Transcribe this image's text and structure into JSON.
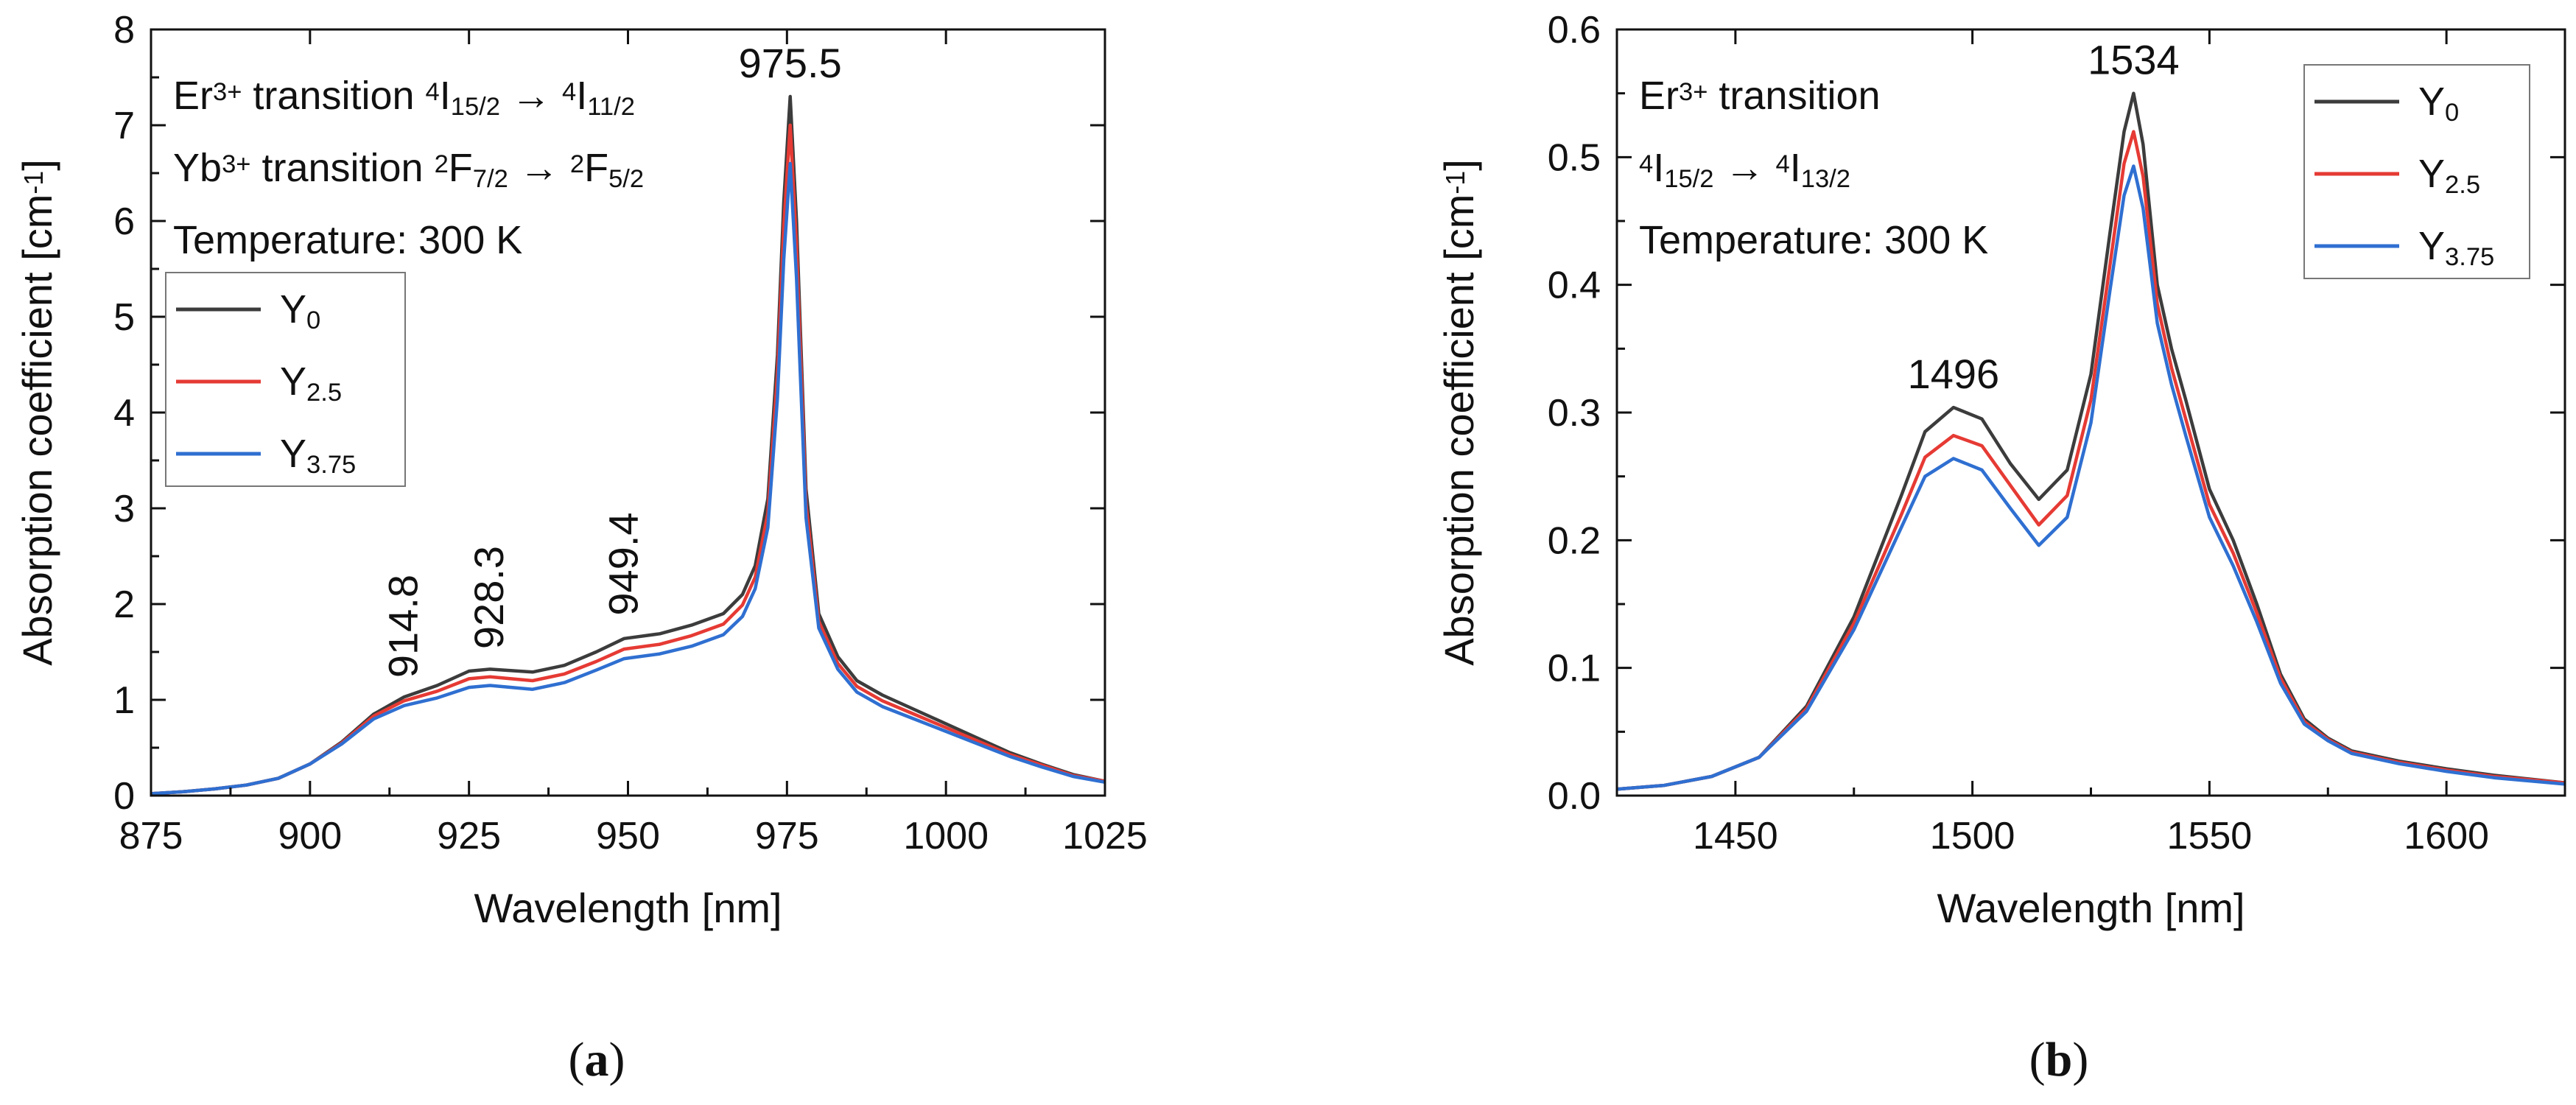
{
  "chart_data": [
    {
      "id": "a",
      "type": "line",
      "xlabel": "Wavelength [nm]",
      "ylabel_parts": [
        "Absorption coefficient [cm",
        "-1",
        "]"
      ],
      "xlim": [
        875,
        1025
      ],
      "ylim": [
        0,
        8
      ],
      "xticks": [
        875,
        900,
        925,
        950,
        975,
        1000,
        1025
      ],
      "yticks": [
        0,
        1,
        2,
        3,
        4,
        5,
        6,
        7,
        8
      ],
      "grid": false,
      "legend_position": "left",
      "info_lines": [
        [
          {
            "t": "Er"
          },
          {
            "t": "3+",
            "s": "sup"
          },
          {
            "t": " transition "
          },
          {
            "t": "4",
            "s": "sup"
          },
          {
            "t": "I"
          },
          {
            "t": "15/2",
            "s": "sub"
          },
          {
            "t": " → "
          },
          {
            "t": "4",
            "s": "sup"
          },
          {
            "t": "I"
          },
          {
            "t": "11/2",
            "s": "sub"
          }
        ],
        [
          {
            "t": "Yb"
          },
          {
            "t": "3+",
            "s": "sup"
          },
          {
            "t": " transition "
          },
          {
            "t": "2",
            "s": "sup"
          },
          {
            "t": "F"
          },
          {
            "t": "7/2",
            "s": "sub"
          },
          {
            "t": " → "
          },
          {
            "t": "2",
            "s": "sup"
          },
          {
            "t": "F"
          },
          {
            "t": "5/2",
            "s": "sub"
          }
        ],
        [
          {
            "t": "Temperature: 300 K"
          }
        ]
      ],
      "peak_labels": [
        {
          "text": "914.8",
          "x": 914.8,
          "y": 1.03,
          "rotate": true
        },
        {
          "text": "928.3",
          "x": 928.3,
          "y": 1.33,
          "rotate": true
        },
        {
          "text": "949.4",
          "x": 949.4,
          "y": 1.68,
          "rotate": true
        },
        {
          "text": "975.5",
          "x": 975.5,
          "y": 7.3,
          "rotate": false
        }
      ],
      "series": [
        {
          "name": "Y",
          "sub": "0",
          "color": "#3c3c3c",
          "x": [
            875,
            880,
            885,
            890,
            895,
            900,
            905,
            910,
            914.8,
            920,
            925,
            928.3,
            935,
            940,
            945,
            949.4,
            955,
            960,
            965,
            968,
            970,
            972,
            973.5,
            974.5,
            975.5,
            976.5,
            978,
            980,
            983,
            986,
            990,
            995,
            1000,
            1005,
            1010,
            1015,
            1020,
            1025
          ],
          "y": [
            0.02,
            0.04,
            0.07,
            0.11,
            0.18,
            0.33,
            0.56,
            0.85,
            1.03,
            1.15,
            1.3,
            1.32,
            1.29,
            1.36,
            1.5,
            1.64,
            1.69,
            1.78,
            1.9,
            2.1,
            2.4,
            3.1,
            4.6,
            6.2,
            7.3,
            6.0,
            3.2,
            1.9,
            1.45,
            1.2,
            1.05,
            0.9,
            0.75,
            0.6,
            0.45,
            0.33,
            0.22,
            0.15
          ]
        },
        {
          "name": "Y",
          "sub": "2.5",
          "color": "#e63a34",
          "x": [
            875,
            880,
            885,
            890,
            895,
            900,
            905,
            910,
            914.8,
            920,
            925,
            928.3,
            935,
            940,
            945,
            949.4,
            955,
            960,
            965,
            968,
            970,
            972,
            973.5,
            974.5,
            975.5,
            976.5,
            978,
            980,
            983,
            986,
            990,
            995,
            1000,
            1005,
            1010,
            1015,
            1020,
            1025
          ],
          "y": [
            0.02,
            0.04,
            0.07,
            0.11,
            0.18,
            0.33,
            0.55,
            0.83,
            0.99,
            1.09,
            1.22,
            1.24,
            1.2,
            1.27,
            1.4,
            1.53,
            1.58,
            1.67,
            1.79,
            1.99,
            2.28,
            2.95,
            4.4,
            5.95,
            7.0,
            5.75,
            3.05,
            1.82,
            1.38,
            1.14,
            0.99,
            0.85,
            0.71,
            0.57,
            0.43,
            0.32,
            0.21,
            0.15
          ]
        },
        {
          "name": "Y",
          "sub": "3.75",
          "color": "#2f6fd1",
          "x": [
            875,
            880,
            885,
            890,
            895,
            900,
            905,
            910,
            914.8,
            920,
            925,
            928.3,
            935,
            940,
            945,
            949.4,
            955,
            960,
            965,
            968,
            970,
            972,
            973.5,
            974.5,
            975.5,
            976.5,
            978,
            980,
            983,
            986,
            990,
            995,
            1000,
            1005,
            1010,
            1015,
            1020,
            1025
          ],
          "y": [
            0.02,
            0.04,
            0.07,
            0.11,
            0.18,
            0.33,
            0.54,
            0.8,
            0.94,
            1.02,
            1.13,
            1.15,
            1.11,
            1.18,
            1.31,
            1.43,
            1.48,
            1.56,
            1.68,
            1.87,
            2.16,
            2.8,
            4.15,
            5.6,
            6.6,
            5.4,
            2.9,
            1.75,
            1.32,
            1.08,
            0.93,
            0.8,
            0.67,
            0.54,
            0.41,
            0.3,
            0.2,
            0.14
          ]
        }
      ]
    },
    {
      "id": "b",
      "type": "line",
      "xlabel": "Wavelength [nm]",
      "ylabel_parts": [
        "Absorption coefficient [cm",
        "-1",
        "]"
      ],
      "xlim": [
        1425,
        1625
      ],
      "ylim": [
        0,
        0.6
      ],
      "xticks": [
        1450,
        1500,
        1550,
        1600
      ],
      "yticks": [
        0.0,
        0.1,
        0.2,
        0.3,
        0.4,
        0.5,
        0.6
      ],
      "grid": false,
      "legend_position": "top-right",
      "info_lines": [
        [
          {
            "t": "Er"
          },
          {
            "t": "3+",
            "s": "sup"
          },
          {
            "t": " transition"
          }
        ],
        [
          {
            "t": "4",
            "s": "sup"
          },
          {
            "t": "I"
          },
          {
            "t": "15/2",
            "s": "sub"
          },
          {
            "t": " → "
          },
          {
            "t": "4",
            "s": "sup"
          },
          {
            "t": "I"
          },
          {
            "t": "13/2",
            "s": "sub"
          }
        ],
        [
          {
            "t": "Temperature: 300 K"
          }
        ]
      ],
      "peak_labels": [
        {
          "text": "1496",
          "x": 1496,
          "y": 0.304,
          "rotate": false
        },
        {
          "text": "1534",
          "x": 1534,
          "y": 0.55,
          "rotate": false
        }
      ],
      "series": [
        {
          "name": "Y",
          "sub": "0",
          "color": "#3c3c3c",
          "x": [
            1425,
            1435,
            1445,
            1455,
            1465,
            1475,
            1485,
            1490,
            1496,
            1502,
            1508,
            1514,
            1520,
            1525,
            1529,
            1532,
            1534,
            1536,
            1539,
            1542,
            1545,
            1550,
            1555,
            1560,
            1565,
            1570,
            1575,
            1580,
            1590,
            1600,
            1610,
            1625
          ],
          "y": [
            0.005,
            0.008,
            0.015,
            0.03,
            0.07,
            0.14,
            0.235,
            0.285,
            0.304,
            0.295,
            0.26,
            0.232,
            0.255,
            0.33,
            0.44,
            0.52,
            0.55,
            0.51,
            0.4,
            0.35,
            0.31,
            0.24,
            0.2,
            0.15,
            0.095,
            0.06,
            0.045,
            0.035,
            0.027,
            0.021,
            0.016,
            0.01
          ]
        },
        {
          "name": "Y",
          "sub": "2.5",
          "color": "#e63a34",
          "x": [
            1425,
            1435,
            1445,
            1455,
            1465,
            1475,
            1485,
            1490,
            1496,
            1502,
            1508,
            1514,
            1520,
            1525,
            1529,
            1532,
            1534,
            1536,
            1539,
            1542,
            1545,
            1550,
            1555,
            1560,
            1565,
            1570,
            1575,
            1580,
            1590,
            1600,
            1610,
            1625
          ],
          "y": [
            0.005,
            0.008,
            0.015,
            0.03,
            0.068,
            0.135,
            0.22,
            0.265,
            0.282,
            0.274,
            0.243,
            0.212,
            0.235,
            0.31,
            0.415,
            0.495,
            0.52,
            0.485,
            0.385,
            0.335,
            0.295,
            0.228,
            0.19,
            0.143,
            0.092,
            0.058,
            0.044,
            0.034,
            0.026,
            0.02,
            0.015,
            0.01
          ]
        },
        {
          "name": "Y",
          "sub": "3.75",
          "color": "#2f6fd1",
          "x": [
            1425,
            1435,
            1445,
            1455,
            1465,
            1475,
            1485,
            1490,
            1496,
            1502,
            1508,
            1514,
            1520,
            1525,
            1529,
            1532,
            1534,
            1536,
            1539,
            1542,
            1545,
            1550,
            1555,
            1560,
            1565,
            1570,
            1575,
            1580,
            1590,
            1600,
            1610,
            1625
          ],
          "y": [
            0.005,
            0.008,
            0.015,
            0.03,
            0.066,
            0.13,
            0.21,
            0.25,
            0.264,
            0.255,
            0.225,
            0.196,
            0.218,
            0.292,
            0.395,
            0.47,
            0.493,
            0.46,
            0.37,
            0.322,
            0.282,
            0.218,
            0.18,
            0.136,
            0.088,
            0.056,
            0.043,
            0.033,
            0.025,
            0.019,
            0.014,
            0.009
          ]
        }
      ]
    }
  ],
  "captions": [
    "a",
    "b"
  ]
}
